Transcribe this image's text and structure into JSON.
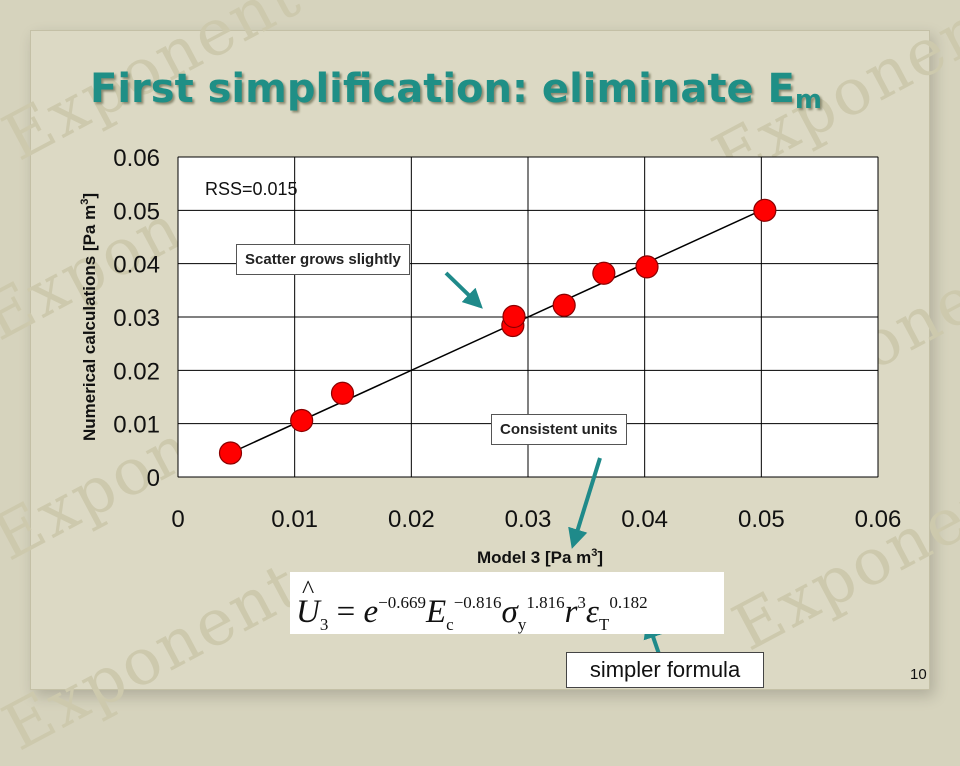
{
  "slide": {
    "title": "First simplification: eliminate E",
    "title_sub": "m",
    "page_number": "10",
    "watermark": "Exponent"
  },
  "chart_data": {
    "type": "scatter",
    "xlabel": "Model 3 [Pa m",
    "xlabel_sup": "3",
    "xlabel_end": "]",
    "ylabel": "Numerical calculations [Pa m",
    "ylabel_sup": "3",
    "ylabel_end": "]",
    "xlim": [
      0,
      0.06
    ],
    "ylim": [
      0,
      0.06
    ],
    "xticks": [
      0,
      0.01,
      0.02,
      0.03,
      0.04,
      0.05,
      0.06
    ],
    "yticks": [
      0,
      0.01,
      0.02,
      0.03,
      0.04,
      0.05,
      0.06
    ],
    "xtick_labels": [
      "0",
      "0.01",
      "0.02",
      "0.03",
      "0.04",
      "0.05",
      "0.06"
    ],
    "ytick_labels": [
      "0",
      "0.01",
      "0.02",
      "0.03",
      "0.04",
      "0.05",
      "0.06"
    ],
    "grid": true,
    "points": [
      {
        "x": 0.0045,
        "y": 0.0045
      },
      {
        "x": 0.0106,
        "y": 0.0106
      },
      {
        "x": 0.0141,
        "y": 0.0157
      },
      {
        "x": 0.0287,
        "y": 0.0284
      },
      {
        "x": 0.0288,
        "y": 0.0301
      },
      {
        "x": 0.0331,
        "y": 0.0322
      },
      {
        "x": 0.0365,
        "y": 0.0382
      },
      {
        "x": 0.0402,
        "y": 0.0394
      },
      {
        "x": 0.0503,
        "y": 0.05
      }
    ],
    "fit_line": {
      "x": [
        0.0045,
        0.0503
      ],
      "y": [
        0.0045,
        0.0503
      ]
    },
    "point_color": "#ff0000",
    "annotation": "RSS=0.015"
  },
  "callouts": {
    "scatter": "Scatter grows slightly",
    "units": "Consistent units"
  },
  "formula": {
    "lhs_symbol": "U",
    "lhs_sub": "3",
    "equals": "=",
    "e": "e",
    "e_exp": "−0.669",
    "E": "E",
    "E_sub": "c",
    "E_exp": "−0.816",
    "sigma": "σ",
    "sigma_sub": "y",
    "sigma_exp": "1.816",
    "r": "r",
    "r_exp": "3",
    "eps": "ε",
    "eps_sub": "T",
    "eps_exp": "0.182"
  },
  "simpler_label": "simpler formula",
  "colors": {
    "title": "#1f8f86",
    "arrow": "#1f8a8a",
    "background": "#d6d3bd"
  }
}
